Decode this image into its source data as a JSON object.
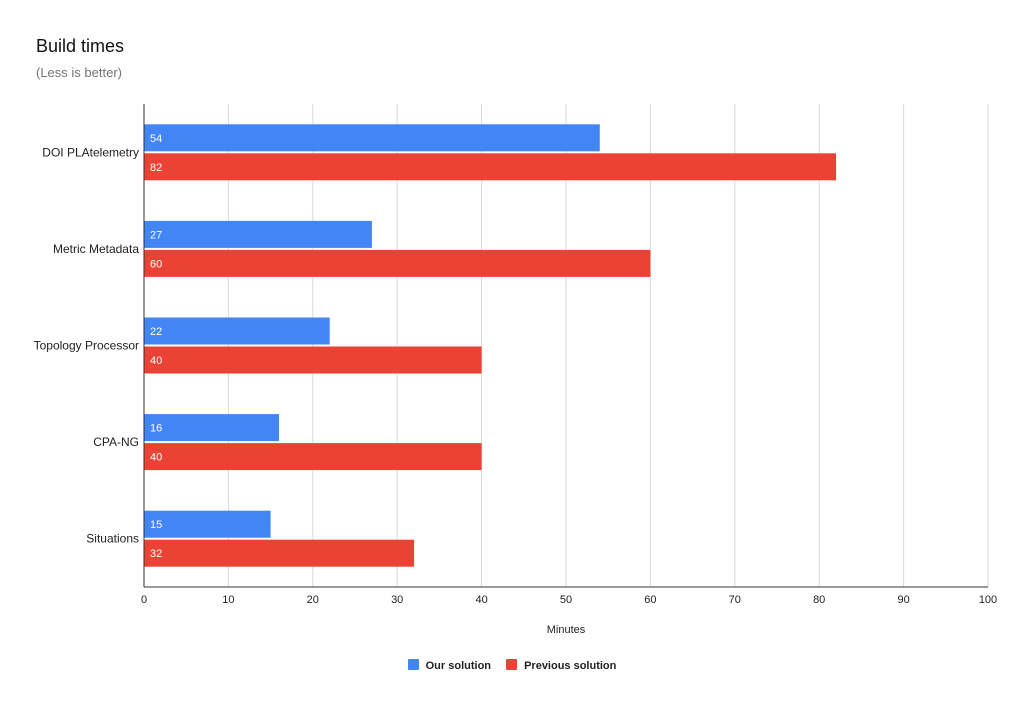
{
  "chart_data": {
    "type": "bar",
    "orientation": "horizontal",
    "title": "Build times",
    "subtitle": "(Less is better)",
    "xlabel": "Minutes",
    "ylabel": "",
    "categories": [
      "DOI PLAtelemetry",
      "Metric Metadata",
      "Topology Processor",
      "CPA-NG",
      "Situations"
    ],
    "series": [
      {
        "name": "Our solution",
        "color": "#4285f4",
        "values": [
          54,
          27,
          22,
          16,
          15
        ]
      },
      {
        "name": "Previous solution",
        "color": "#ea4335",
        "values": [
          82,
          60,
          40,
          40,
          32
        ]
      }
    ],
    "xlim": [
      0,
      100
    ],
    "xticks": [
      0,
      10,
      20,
      30,
      40,
      50,
      60,
      70,
      80,
      90,
      100
    ],
    "grid": true,
    "legend_position": "bottom"
  }
}
